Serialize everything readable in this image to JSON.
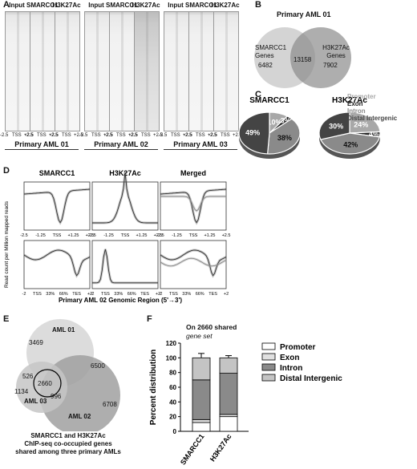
{
  "panelA": {
    "label": "A",
    "headers": [
      "Input",
      "SMARCC1",
      "H3K27Ac"
    ],
    "axis_ticks": [
      "-2.5",
      "TSS",
      "+2.5"
    ],
    "groups": [
      "Primary AML 01",
      "Primary AML 02",
      "Primary AML 03"
    ]
  },
  "panelB": {
    "label": "B",
    "title": "Primary AML 01",
    "left_name": "SMARCC1 Genes",
    "left_count": "6482",
    "overlap": "13158",
    "right_name": "H3K27Ac Genes",
    "right_count": "7902"
  },
  "panelC": {
    "label": "C",
    "legend": [
      "Promoter",
      "Exon",
      "Intron",
      "Distal Intergenic"
    ],
    "legend_colors": [
      "#a8a8a8",
      "#222222",
      "#8a8a8a",
      "#444444"
    ],
    "pies": [
      {
        "title": "SMARCC1",
        "labels": [
          "10%",
          "3%",
          "38%",
          "49%"
        ]
      },
      {
        "title": "H3K27Ac",
        "labels": [
          "24%",
          "4%",
          "42%",
          "30%"
        ]
      }
    ]
  },
  "panelD": {
    "label": "D",
    "titles": [
      "SMARCC1",
      "H3K27Ac",
      "Merged"
    ],
    "ylabel": "Read count per Million mapped reads",
    "row1_ticks": [
      "-2.5",
      "-1.25",
      "TSS",
      "+1.25",
      "+2.5"
    ],
    "row2_ticks": [
      "-2",
      "TSS",
      "33%",
      "66%",
      "TES",
      "+2"
    ],
    "xlabel": "Primary AML 02 Genomic Region  (5'→3')"
  },
  "panelE": {
    "label": "E",
    "sets": [
      "AML 01",
      "AML 02",
      "AML 03"
    ],
    "counts": [
      "3469",
      "6500",
      "526",
      "1134",
      "2660",
      "996",
      "6708"
    ],
    "caption": [
      "SMARCC1 and H3K27Ac",
      "ChIP-seq co-occupied genes",
      "shared among three primary AMLs"
    ]
  },
  "panelF": {
    "label": "F",
    "title_lines": [
      "On 2660 shared",
      "gene set"
    ],
    "ylabel": "Percent distribution",
    "yticks": [
      "0",
      "20",
      "40",
      "60",
      "80",
      "100",
      "120"
    ],
    "categories": [
      "SMARCC1",
      "H3K27Ac"
    ],
    "legend": [
      "Promoter",
      "Exon",
      "Intron",
      "Distal Intergenic"
    ]
  },
  "chart_data": [
    {
      "type": "pie",
      "title": "SMARCC1",
      "categories": [
        "Promoter",
        "Exon",
        "Intron",
        "Distal Intergenic"
      ],
      "values": [
        10,
        3,
        38,
        49
      ]
    },
    {
      "type": "pie",
      "title": "H3K27Ac",
      "categories": [
        "Promoter",
        "Exon",
        "Intron",
        "Distal Intergenic"
      ],
      "values": [
        24,
        4,
        42,
        30
      ]
    },
    {
      "type": "bar",
      "stacked": true,
      "categories": [
        "SMARCC1",
        "H3K27Ac"
      ],
      "series": [
        {
          "name": "Promoter",
          "values": [
            12,
            20
          ]
        },
        {
          "name": "Exon",
          "values": [
            4,
            3
          ]
        },
        {
          "name": "Intron",
          "values": [
            54,
            56
          ]
        },
        {
          "name": "Distal Intergenic",
          "values": [
            30,
            21
          ]
        }
      ],
      "errors": [
        6,
        3
      ],
      "ylabel": "Percent distribution",
      "ylim": [
        0,
        120
      ],
      "yticks": [
        0,
        20,
        40,
        60,
        80,
        100,
        120
      ]
    }
  ]
}
